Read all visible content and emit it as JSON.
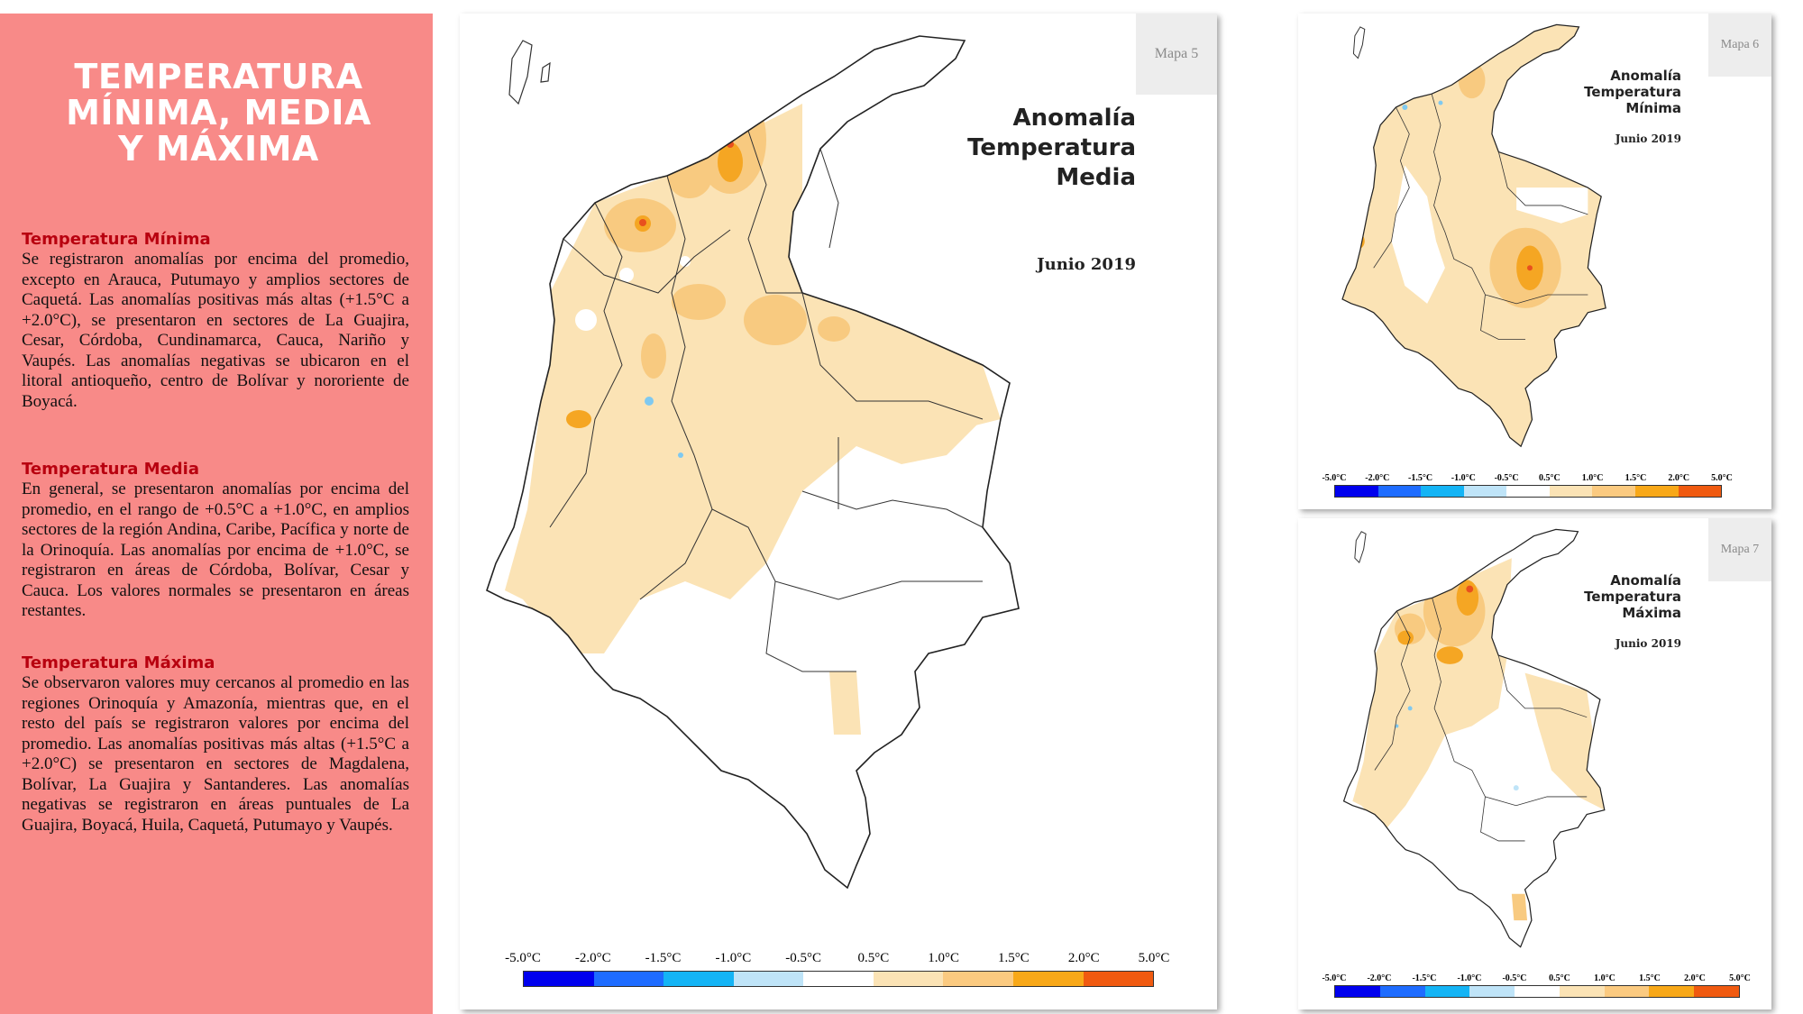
{
  "sidebar": {
    "title_lines": [
      "TEMPERATURA",
      "MÍNIMA, MEDIA",
      "Y MÁXIMA"
    ],
    "sections": [
      {
        "heading": "Temperatura Mínima",
        "text": "Se registraron anomalías por encima del promedio, excepto en Arauca, Putumayo y amplios sectores de Caquetá. Las anomalías positivas más altas (+1.5°C a +2.0°C), se presentaron en sectores de La Guajira, Cesar, Córdoba, Cundinamarca, Cauca, Nariño y Vaupés. Las anomalías negativas se ubicaron en el litoral antioqueño, centro de Bolívar y nororiente de Boyacá."
      },
      {
        "heading": "Temperatura Media",
        "text": "En general, se presentaron anomalías por encima del promedio, en el rango de +0.5°C a +1.0°C, en amplios sectores de la región Andina, Caribe, Pacífica y norte de la Orinoquía. Las anomalías por encima de +1.0°C, se registraron en áreas de Córdoba, Bolívar, Cesar y Cauca. Los valores normales se presentaron en áreas restantes."
      },
      {
        "heading": "Temperatura Máxima",
        "text": "Se observaron valores muy cercanos al promedio en las regiones Orinoquía y Amazonía, mientras que, en el resto del país se registraron valores por encima del promedio. Las anomalías positivas más altas (+1.5°C a +2.0°C) se presentaron en sectores de Magdalena, Bolívar, La Guajira y Santanderes. Las anomalías negativas se registraron en áreas puntuales de La Guajira, Boyacá, Huila, Caquetá, Putumayo y Vaupés."
      }
    ]
  },
  "maps": {
    "main": {
      "tag": "Mapa 5",
      "title_lines": [
        "Anomalía",
        "Temperatura",
        "Media"
      ],
      "date": "Junio 2019"
    },
    "min": {
      "tag": "Mapa 6",
      "title_lines": [
        "Anomalía",
        "Temperatura",
        "Mínima"
      ],
      "date": "Junio 2019"
    },
    "max": {
      "tag": "Mapa 7",
      "title_lines": [
        "Anomalía",
        "Temperatura",
        "Máxima"
      ],
      "date": "Junio 2019"
    }
  },
  "legend": {
    "ticks": [
      "-5.0°C",
      "-2.0°C",
      "-1.5°C",
      "-1.0°C",
      "-0.5°C",
      "0.5°C",
      "1.0°C",
      "1.5°C",
      "2.0°C",
      "5.0°C"
    ],
    "colors": [
      "#0000ee",
      "#1e6cff",
      "#14b4f5",
      "#bfe4f8",
      "#ffffff",
      "#fbe3b5",
      "#fbca80",
      "#f8a818",
      "#f05a10"
    ]
  },
  "colors": {
    "sidebar_bg": "#f88a88",
    "heading_red": "#b8000f",
    "anomaly_light": "#fbe3b5",
    "anomaly_mid": "#f8ca80",
    "anomaly_high": "#f5a623",
    "anomaly_peak": "#e8501e",
    "anomaly_neg": "#7fc9f0"
  }
}
